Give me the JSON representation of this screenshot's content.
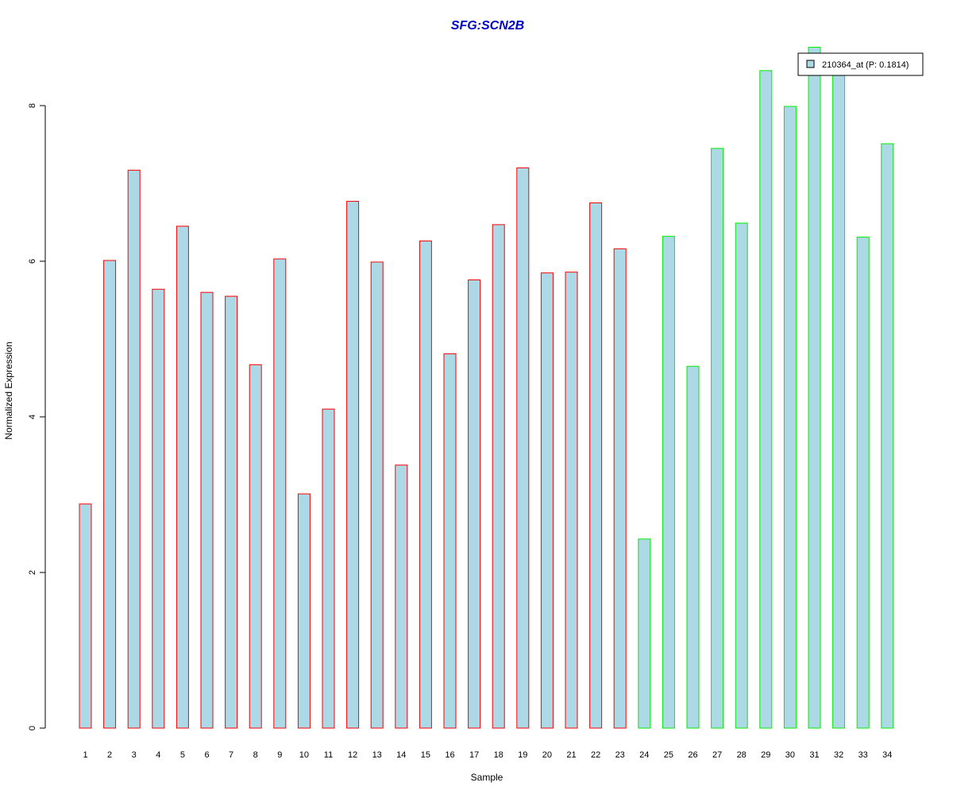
{
  "chart_data": {
    "type": "bar",
    "title": "SFG:SCN2B",
    "xlabel": "Sample",
    "ylabel": "Normalized Expression",
    "ylim": [
      0,
      8.8
    ],
    "yticks": [
      0,
      2,
      4,
      6,
      8
    ],
    "categories": [
      "1",
      "2",
      "3",
      "4",
      "5",
      "6",
      "7",
      "8",
      "9",
      "10",
      "11",
      "12",
      "13",
      "14",
      "15",
      "16",
      "17",
      "18",
      "19",
      "20",
      "21",
      "22",
      "23",
      "24",
      "25",
      "26",
      "27",
      "28",
      "29",
      "30",
      "31",
      "32",
      "33",
      "34"
    ],
    "series": [
      {
        "name": "210364_at (P: 0.1814)",
        "values": [
          2.88,
          6.01,
          7.17,
          5.64,
          6.45,
          5.6,
          5.55,
          4.67,
          6.03,
          3.01,
          4.1,
          6.77,
          5.99,
          3.38,
          6.26,
          4.81,
          5.76,
          6.47,
          7.2,
          5.85,
          5.86,
          6.75,
          6.16,
          2.43,
          6.32,
          4.65,
          7.45,
          6.49,
          8.45,
          7.99,
          8.75,
          8.43,
          6.31,
          7.51
        ]
      }
    ],
    "groups": [
      {
        "samples": "1-23",
        "border_color": "#ff0000"
      },
      {
        "samples": "24-34",
        "border_color": "#00ee00"
      }
    ],
    "fill_color": "#add8e6",
    "legend_position": "top-right",
    "grid": false
  },
  "colors": {
    "title": "#0000cd",
    "bar_fill": "#add8e6",
    "group1_border": "#ff0000",
    "group2_border": "#00ee00"
  }
}
